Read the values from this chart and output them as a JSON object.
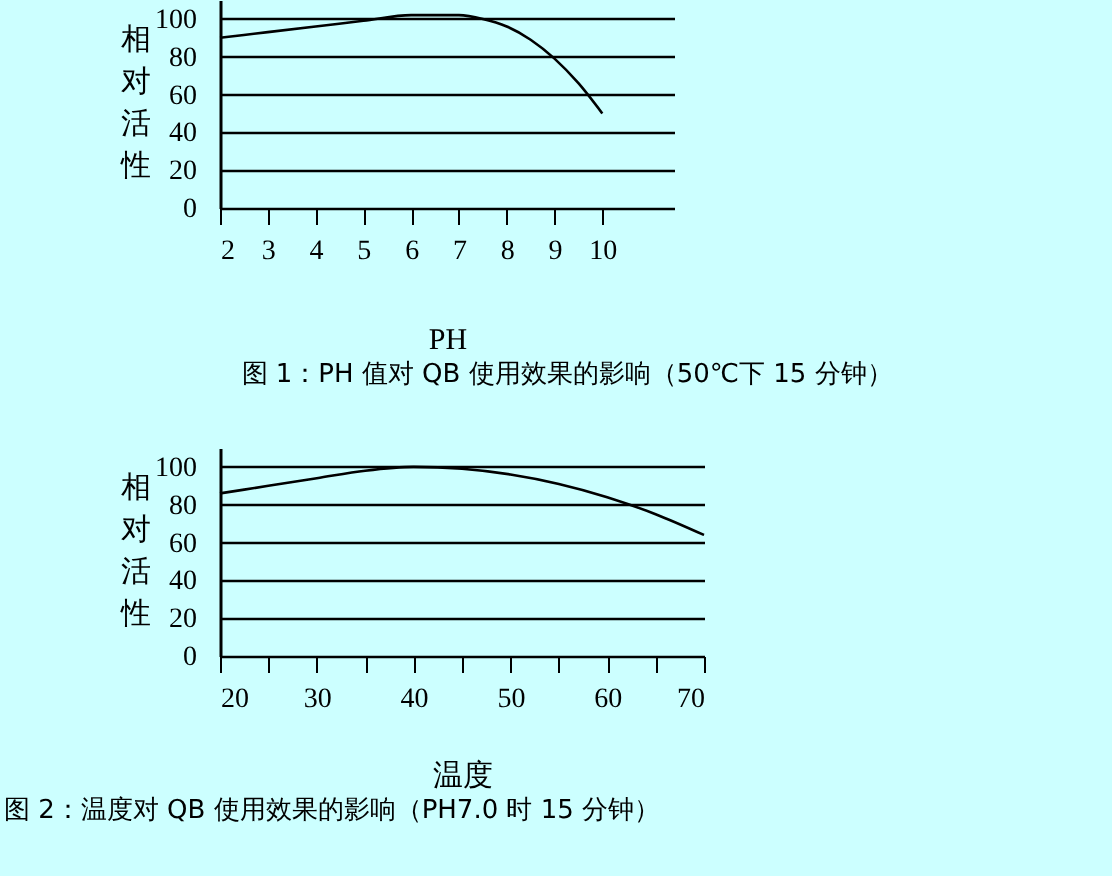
{
  "chart_data": [
    {
      "type": "line",
      "title": "图 1：PH 值对 QB 使用效果的影响（50℃下 15 分钟）",
      "xlabel": "PH",
      "ylabel": "相对活性",
      "x": [
        2,
        3,
        4,
        5,
        6,
        6.5,
        7,
        7.5,
        8,
        8.5,
        9,
        9.5,
        10
      ],
      "series": [
        {
          "color": "#000000",
          "values": [
            90,
            93,
            96,
            99,
            102,
            102,
            102,
            100,
            96,
            89,
            79,
            66,
            50
          ]
        }
      ],
      "xlim": [
        2,
        11.5
      ],
      "xticks": [
        2,
        3,
        4,
        5,
        6,
        7,
        8,
        9,
        10
      ],
      "ylim": [
        0,
        110
      ],
      "yticks": [
        0,
        20,
        40,
        60,
        80,
        100
      ],
      "grid": "y"
    },
    {
      "type": "line",
      "title": "图 2：温度对 QB 使用效果的影响（PH7.0 时 15 分钟）",
      "xlabel": "温度",
      "ylabel": "相对活性",
      "x": [
        20,
        25,
        30,
        35,
        40,
        45,
        50,
        55,
        60,
        65,
        70
      ],
      "series": [
        {
          "color": "#000000",
          "values": [
            86,
            90,
            94,
            98,
            100,
            99,
            96,
            91,
            84,
            75,
            64
          ]
        }
      ],
      "xlim": [
        20,
        70
      ],
      "xticks": [
        20,
        {
          "value": 25,
          "label": null
        },
        30,
        {
          "value": 35,
          "label": null
        },
        40,
        {
          "value": 45,
          "label": null
        },
        50,
        {
          "value": 55,
          "label": null
        },
        60,
        {
          "value": 65,
          "label": null
        },
        70
      ],
      "ylim": [
        0,
        110
      ],
      "yticks": [
        0,
        20,
        40,
        60,
        80,
        100
      ],
      "grid": "y"
    }
  ]
}
